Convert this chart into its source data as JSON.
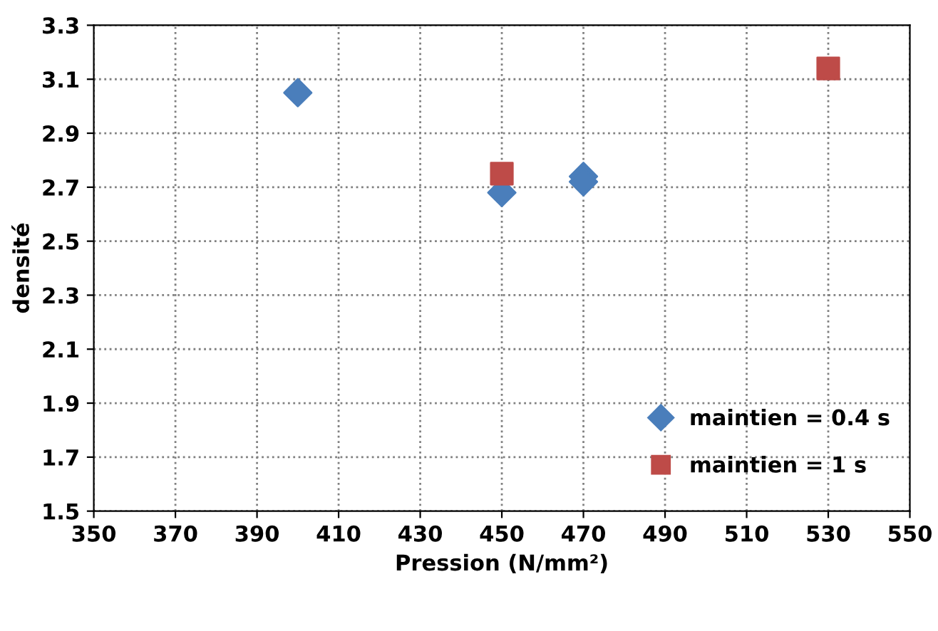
{
  "chart_data": {
    "type": "scatter",
    "xlabel": "Pression (N/mm²)",
    "ylabel": "densité",
    "xlim": [
      350,
      550
    ],
    "xticks": [
      350,
      370,
      390,
      410,
      430,
      450,
      470,
      490,
      510,
      530,
      550
    ],
    "ylim": [
      1.5,
      3.3
    ],
    "yticks": [
      1.5,
      1.7,
      1.9,
      2.1,
      2.3,
      2.5,
      2.7,
      2.9,
      3.1,
      3.3
    ],
    "grid": true,
    "legend": "bottom right",
    "series": [
      {
        "name": "maintien = 0.4 s",
        "color": "#4a7ebb",
        "marker": "diamond",
        "x": [
          400,
          450,
          470,
          470
        ],
        "values": [
          3.05,
          2.68,
          2.74,
          2.72
        ]
      },
      {
        "name": "maintien = 1 s",
        "color": "#be4b48",
        "marker": "square",
        "x": [
          450,
          530
        ],
        "values": [
          2.75,
          3.14
        ]
      }
    ]
  }
}
